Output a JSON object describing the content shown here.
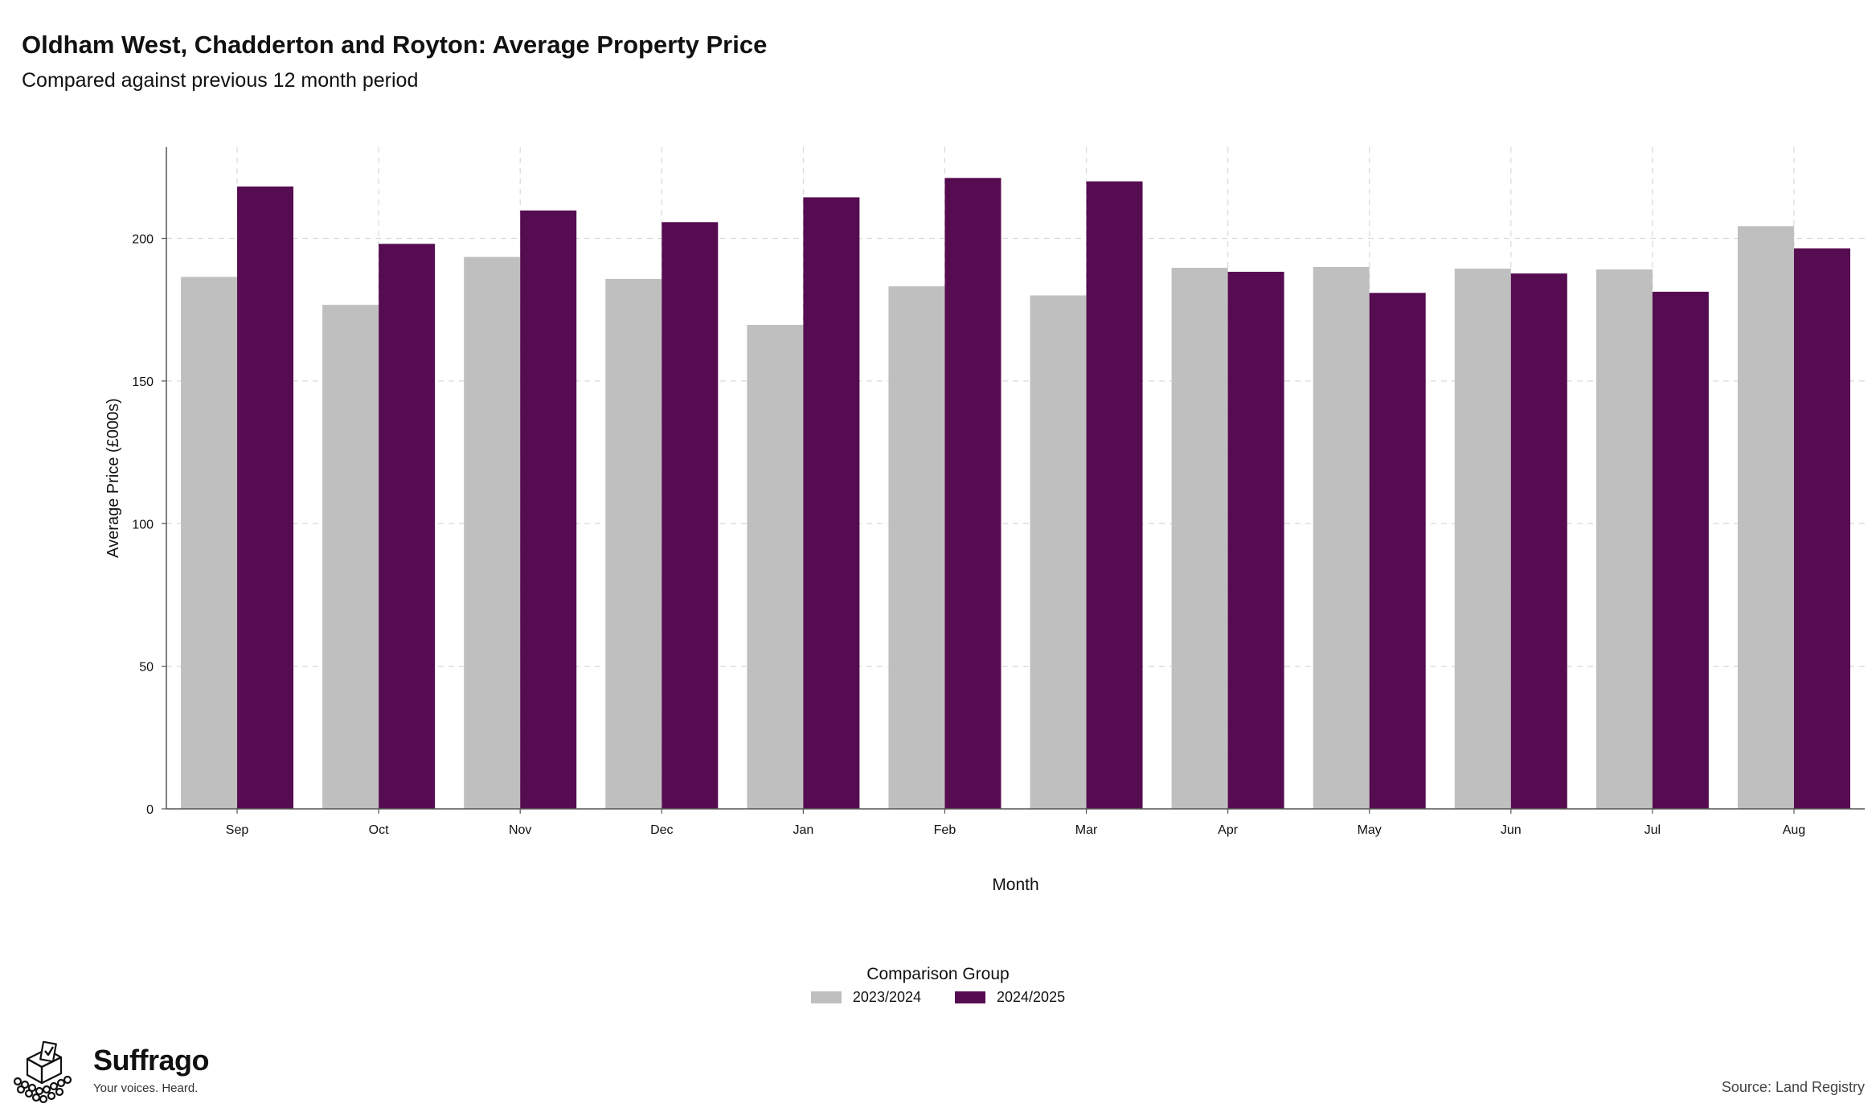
{
  "header": {
    "title": "Oldham West, Chadderton and Royton: Average Property Price",
    "subtitle": "Compared against previous 12 month period"
  },
  "chart_data": {
    "type": "bar",
    "title": "Oldham West, Chadderton and Royton: Average Property Price",
    "subtitle": "Compared against previous 12 month period",
    "xlabel": "Month",
    "ylabel": "Average Price (£000s)",
    "categories": [
      "Sep",
      "Oct",
      "Nov",
      "Dec",
      "Jan",
      "Feb",
      "Mar",
      "Apr",
      "May",
      "Jun",
      "Jul",
      "Aug"
    ],
    "series": [
      {
        "name": "2023/2024",
        "color": "#bfbfbf",
        "values": [
          186.5,
          176.7,
          193.5,
          185.8,
          169.7,
          183.2,
          180.0,
          189.7,
          190.0,
          189.4,
          189.1,
          204.3
        ]
      },
      {
        "name": "2024/2025",
        "color": "#560c50",
        "values": [
          218.2,
          198.1,
          209.8,
          205.7,
          214.4,
          221.2,
          220.0,
          188.3,
          180.9,
          187.7,
          181.3,
          196.5
        ]
      }
    ],
    "ylim": [
      0,
      232
    ],
    "yticks": [
      0,
      50,
      100,
      150,
      200
    ],
    "grid": true,
    "legend": {
      "title": "Comparison Group",
      "position": "bottom"
    }
  },
  "footer": {
    "brand_name": "Suffrago",
    "brand_tagline": "Your voices. Heard.",
    "brand_icon": "ballot-box-icon",
    "source": "Source: Land Registry"
  }
}
